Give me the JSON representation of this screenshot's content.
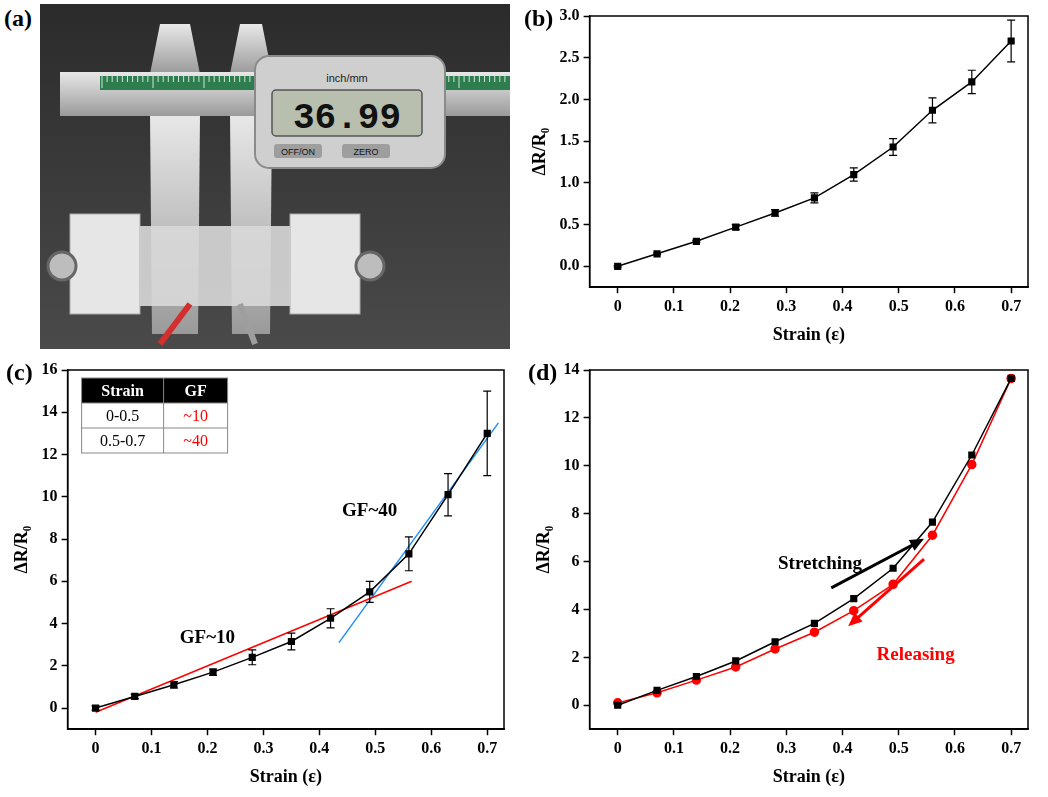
{
  "photo": {
    "panel": "(a)",
    "unit_button": "inch/mm",
    "display": "36.99",
    "buttons": [
      "OFF/ON",
      "ZERO"
    ]
  },
  "chart_data": [
    {
      "panel": "(b)",
      "type": "line",
      "x_label": "Strain (ε)",
      "y_label": "ΔR/R₀",
      "x": [
        0,
        0.07,
        0.14,
        0.21,
        0.28,
        0.35,
        0.42,
        0.49,
        0.56,
        0.63,
        0.7
      ],
      "series": [
        {
          "color": "#000000",
          "marker": "square",
          "line_style": "solid",
          "values": [
            0,
            0.15,
            0.3,
            0.47,
            0.64,
            0.82,
            1.1,
            1.43,
            1.87,
            2.21,
            2.7
          ],
          "errors": [
            0.01,
            0.01,
            0.01,
            0.03,
            0.04,
            0.06,
            0.08,
            0.1,
            0.15,
            0.14,
            0.25
          ]
        }
      ],
      "xlim": [
        -0.05,
        0.73
      ],
      "xticks": [
        0,
        0.1,
        0.2,
        0.3,
        0.4,
        0.5,
        0.6,
        0.7
      ],
      "ylim": [
        -0.25,
        3.0
      ],
      "yticks": [
        {
          "value": 0,
          "label": "0.0"
        },
        0.5,
        {
          "value": 1,
          "label": "1.0"
        },
        1.5,
        {
          "value": 2,
          "label": "2.0"
        },
        2.5,
        {
          "value": 3,
          "label": "3.0"
        }
      ],
      "grid": false
    },
    {
      "panel": "(c)",
      "type": "line",
      "x_label": "Strain (ε)",
      "y_label": "ΔR/R₀",
      "x": [
        0,
        0.07,
        0.14,
        0.21,
        0.28,
        0.35,
        0.42,
        0.49,
        0.56,
        0.63,
        0.7
      ],
      "series": [
        {
          "color": "#000000",
          "marker": "square",
          "line_style": "solid",
          "values": [
            0,
            0.55,
            1.1,
            1.7,
            2.4,
            3.15,
            4.25,
            5.5,
            7.3,
            10.1,
            13.0
          ],
          "errors": [
            0.1,
            0.1,
            0.15,
            0.15,
            0.35,
            0.4,
            0.45,
            0.5,
            0.8,
            1.0,
            2.0
          ]
        },
        {
          "name": "GF~10",
          "color": "#ff0000",
          "marker": "none",
          "line_style": "solid",
          "x": [
            0,
            0.565
          ],
          "values": [
            -0.2,
            6.0
          ]
        },
        {
          "name": "GF~40",
          "color": "#1e90ff",
          "marker": "none",
          "line_style": "solid",
          "x": [
            0.435,
            0.72
          ],
          "values": [
            3.1,
            13.5
          ]
        }
      ],
      "table": {
        "header": [
          "Strain",
          "GF"
        ],
        "rows": [
          [
            "0-0.5",
            "~10"
          ],
          [
            "0.5-0.7",
            "~40"
          ]
        ]
      },
      "xlim": [
        -0.05,
        0.73
      ],
      "xticks": [
        0,
        0.1,
        0.2,
        0.3,
        0.4,
        0.5,
        0.6,
        0.7
      ],
      "ylim": [
        -1,
        16
      ],
      "yticks": [
        0,
        2,
        4,
        6,
        8,
        10,
        12,
        14,
        16
      ],
      "grid": false
    },
    {
      "panel": "(d)",
      "type": "line",
      "x_label": "Strain (ε)",
      "y_label": "ΔR/R₀",
      "x": [
        0,
        0.07,
        0.14,
        0.21,
        0.28,
        0.35,
        0.42,
        0.49,
        0.56,
        0.63,
        0.7
      ],
      "series": [
        {
          "name": "Stretching",
          "color": "#000000",
          "marker": "square",
          "line_style": "solid",
          "values": [
            0,
            0.62,
            1.2,
            1.85,
            2.65,
            3.42,
            4.45,
            5.72,
            7.65,
            10.45,
            13.65
          ]
        },
        {
          "name": "Releasing",
          "color": "#ff0000",
          "marker": "circle",
          "line_style": "solid",
          "values": [
            0.1,
            0.52,
            1.05,
            1.6,
            2.35,
            3.05,
            3.95,
            5.05,
            7.1,
            10.05,
            13.65
          ]
        }
      ],
      "xlim": [
        -0.05,
        0.73
      ],
      "xticks": [
        0,
        0.1,
        0.2,
        0.3,
        0.4,
        0.5,
        0.6,
        0.7
      ],
      "ylim": [
        -1,
        14
      ],
      "yticks": [
        0,
        2,
        4,
        6,
        8,
        10,
        12,
        14
      ],
      "grid": false
    }
  ]
}
